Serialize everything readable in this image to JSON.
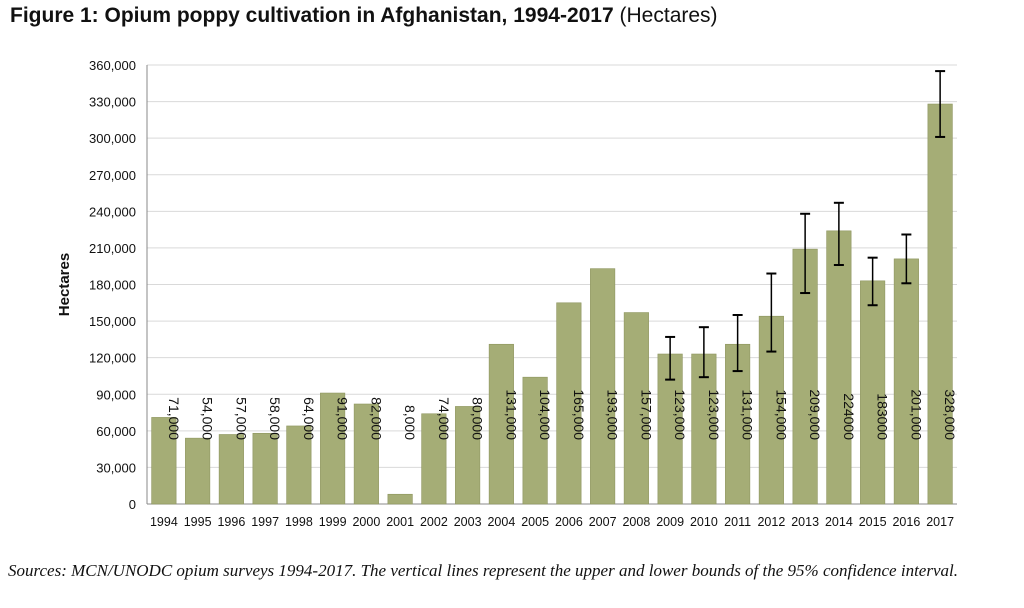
{
  "figure": {
    "title_bold": "Figure 1: Opium poppy cultivation in Afghanistan, 1994-2017",
    "title_unit": "(Hectares)",
    "sources": "Sources: MCN/UNODC opium surveys 1994-2017. The vertical lines represent the upper and lower bounds of the 95% confidence interval."
  },
  "colors": {
    "bar": "#a5ad76",
    "bar_edge": "#8d955e",
    "grid": "#d9d9d9",
    "error_bar": "#000000"
  },
  "chart_data": {
    "type": "bar",
    "title": "Figure 1: Opium poppy cultivation in Afghanistan, 1994-2017 (Hectares)",
    "ylabel": "Hectares",
    "xlabel": "",
    "ylim": [
      0,
      360000
    ],
    "yticks": [
      0,
      30000,
      60000,
      90000,
      120000,
      150000,
      180000,
      210000,
      240000,
      270000,
      300000,
      330000,
      360000
    ],
    "ytick_labels": [
      "0",
      "30,000",
      "60,000",
      "90,000",
      "120,000",
      "150,000",
      "180,000",
      "210,000",
      "240,000",
      "270,000",
      "300,000",
      "330,000",
      "360,000"
    ],
    "grid": true,
    "categories": [
      "1994",
      "1995",
      "1996",
      "1997",
      "1998",
      "1999",
      "2000",
      "2001",
      "2002",
      "2003",
      "2004",
      "2005",
      "2006",
      "2007",
      "2008",
      "2009",
      "2010",
      "2011",
      "2012",
      "2013",
      "2014",
      "2015",
      "2016",
      "2017"
    ],
    "values": [
      71000,
      54000,
      57000,
      58000,
      64000,
      91000,
      82000,
      8000,
      74000,
      80000,
      131000,
      104000,
      165000,
      193000,
      157000,
      123000,
      123000,
      131000,
      154000,
      209000,
      224000,
      183000,
      201000,
      328000
    ],
    "data_labels": [
      "71,000",
      "54,000",
      "57,000",
      "58,000",
      "64,000",
      "91,000",
      "82,000",
      "8,000",
      "74,000",
      "80,000",
      "131,000",
      "104,000",
      "165,000",
      "193,000",
      "157,000",
      "123,000",
      "123,000",
      "131,000",
      "154,000",
      "209,000",
      "224000",
      "183000",
      "201,000",
      "328,000"
    ],
    "error_bars": [
      {
        "year": "2009",
        "lower": 102000,
        "upper": 137000
      },
      {
        "year": "2010",
        "lower": 104000,
        "upper": 145000
      },
      {
        "year": "2011",
        "lower": 109000,
        "upper": 155000
      },
      {
        "year": "2012",
        "lower": 125000,
        "upper": 189000
      },
      {
        "year": "2013",
        "lower": 173000,
        "upper": 238000
      },
      {
        "year": "2014",
        "lower": 196000,
        "upper": 247000
      },
      {
        "year": "2015",
        "lower": 163000,
        "upper": 202000
      },
      {
        "year": "2016",
        "lower": 181000,
        "upper": 221000
      },
      {
        "year": "2017",
        "lower": 301000,
        "upper": 355000
      }
    ]
  }
}
